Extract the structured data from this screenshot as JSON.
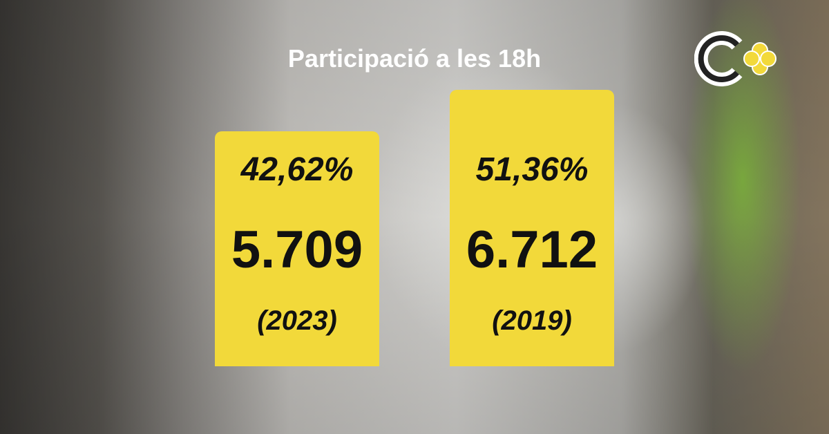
{
  "title": "Participació a les 18h",
  "cards": [
    {
      "percentage": "42,62%",
      "count": "5.709",
      "year": "(2023)"
    },
    {
      "percentage": "51,36%",
      "count": "6.712",
      "year": "(2019)"
    }
  ]
}
